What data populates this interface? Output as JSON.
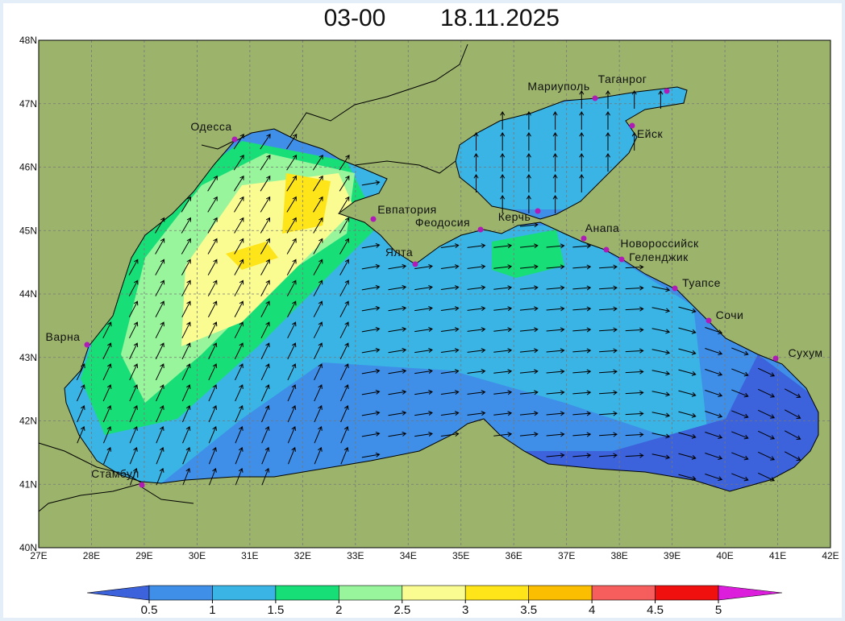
{
  "map": {
    "title_time": "03-00",
    "title_date": "18.11.2025",
    "lon_ticks": [
      {
        "value": 27,
        "label": "27E"
      },
      {
        "value": 28,
        "label": "28E"
      },
      {
        "value": 29,
        "label": "29E"
      },
      {
        "value": 30,
        "label": "30E"
      },
      {
        "value": 31,
        "label": "31E"
      },
      {
        "value": 32,
        "label": "32E"
      },
      {
        "value": 33,
        "label": "33E"
      },
      {
        "value": 34,
        "label": "34E"
      },
      {
        "value": 35,
        "label": "35E"
      },
      {
        "value": 36,
        "label": "36E"
      },
      {
        "value": 37,
        "label": "37E"
      },
      {
        "value": 38,
        "label": "38E"
      },
      {
        "value": 39,
        "label": "39E"
      },
      {
        "value": 40,
        "label": "40E"
      },
      {
        "value": 41,
        "label": "41E"
      },
      {
        "value": 42,
        "label": "42E"
      }
    ],
    "lat_ticks": [
      {
        "value": 48,
        "label": "48N"
      },
      {
        "value": 47,
        "label": "47N"
      },
      {
        "value": 46,
        "label": "46N"
      },
      {
        "value": 45,
        "label": "45N"
      },
      {
        "value": 44,
        "label": "44N"
      },
      {
        "value": 43,
        "label": "43N"
      },
      {
        "value": 42,
        "label": "42N"
      },
      {
        "value": 41,
        "label": "41N"
      },
      {
        "value": 40,
        "label": "40N"
      }
    ],
    "lonlim": [
      27,
      42
    ],
    "latlim": [
      40,
      48
    ],
    "cities": [
      "Одесса",
      "Мариуполь",
      "Таганрог",
      "Ейск",
      "Евпатория",
      "Феодосия",
      "Керчь",
      "Анапа",
      "Новороссийск",
      "Геленджик",
      "Ялта",
      "Туапсе",
      "Сочи",
      "Сухум",
      "Варна",
      "Стамбул"
    ],
    "colorbar": {
      "ticks": [
        0.5,
        1,
        1.5,
        2,
        2.5,
        3,
        3.5,
        4,
        4.5,
        5
      ],
      "colors": [
        "#3c62dc",
        "#3f8fe8",
        "#3ab4e4",
        "#18de78",
        "#98f59c",
        "#fafc92",
        "#fde51a",
        "#fcbe00",
        "#f55e5c",
        "#f0100e",
        "#dc1ddc"
      ]
    }
  }
}
